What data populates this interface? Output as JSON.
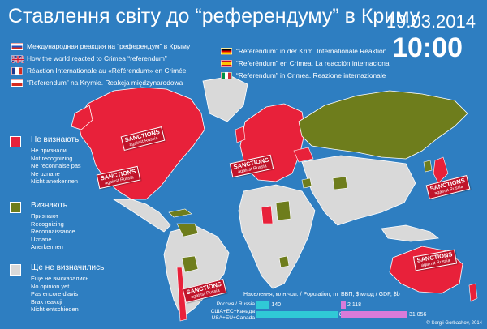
{
  "header": {
    "title": "Ставлення світу до “референдуму” в Криму",
    "date": "19.03.2014",
    "time": "10:00"
  },
  "languages": [
    {
      "flag": "russia",
      "text": "Международная реакция на “референдум” в Крыму"
    },
    {
      "flag": "uk",
      "text": "How the world reacted to Crimea “referendum”"
    },
    {
      "flag": "france",
      "text": "Réaction Internationale au «Référendum» en Crimée"
    },
    {
      "flag": "poland",
      "text": "“Referendum” na Krymie. Reakcja międzynarodowa"
    },
    {
      "flag": "germany",
      "text": "“Referendum” in der Krim. Internationale Reaktion"
    },
    {
      "flag": "spain",
      "text": "“Referéndum” en Crimea. La reacción internacional"
    },
    {
      "flag": "italy",
      "text": "“Referendum” in Crimea. Reazione internazionale"
    }
  ],
  "legend": [
    {
      "key": "not_recognize",
      "color": "#e8213a",
      "title": "Не визнають",
      "sub": [
        "Не признали",
        "Not recognizing",
        "Ne reconnaise pas",
        "Ne uznane",
        "Nicht anerkennen"
      ]
    },
    {
      "key": "recognize",
      "color": "#6e7d1c",
      "title": "Визнають",
      "sub": [
        "Признают",
        "Recognizing",
        "Reconnaissance",
        "Uznane",
        "Anerkennen"
      ]
    },
    {
      "key": "undecided",
      "color": "#d9d9d9",
      "title": "Ще не визначились",
      "sub": [
        "Еще не высказались",
        "No opinion yet",
        "Pas encore d'avis",
        "Brak reakcji",
        "Nicht entschieden"
      ]
    }
  ],
  "sanctions": {
    "line1": "SANCTIONS",
    "line2": "against Russia"
  },
  "stats": {
    "population_header": "Населення, млн.чол. / Population, m",
    "gdp_header": "ВВП, $ млрд / GDP, $b",
    "rows": [
      {
        "label_lines": [
          "Россия / Russia"
        ],
        "population": 140,
        "population_text": "140",
        "gdp": 2118,
        "gdp_text": "2 118"
      },
      {
        "label_lines": [
          "США+ЕС+Канада",
          "USA+EU+Canada"
        ],
        "population": 856,
        "population_text": "856",
        "gdp": 31056,
        "gdp_text": "31 056"
      }
    ],
    "colors": {
      "population": "#30c9d6",
      "gdp": "#d97bd9"
    }
  },
  "credit": "© Sergii Gorbachov, 2014",
  "colors": {
    "ocean": "#2e7ec1",
    "not_recognize": "#e8213a",
    "recognize": "#6e7d1c",
    "undecided": "#d9d9d9",
    "stamp": "#c0142a"
  }
}
